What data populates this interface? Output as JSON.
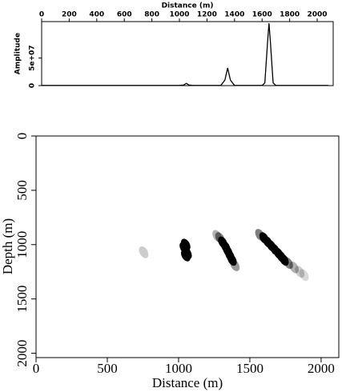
{
  "chart_data": [
    {
      "type": "line",
      "x_label": "Distance (m)",
      "y_label": "Amplitude",
      "xlim": [
        0,
        2116
      ],
      "xticks": [
        0,
        200,
        400,
        600,
        800,
        1000,
        1200,
        1400,
        1600,
        1800,
        2000
      ],
      "ylim": [
        0,
        116000000
      ],
      "yticks": [
        0,
        {
          "value": 50000000,
          "label": "5e+07"
        }
      ],
      "color": "#000000",
      "x": [
        0,
        1000,
        1030,
        1050,
        1070,
        1100,
        1300,
        1330,
        1350,
        1370,
        1400,
        1600,
        1620,
        1640,
        1650,
        1660,
        1680,
        1700,
        2080
      ],
      "values": [
        300000,
        300000,
        1000000,
        4000000,
        1000000,
        300000,
        300000,
        10000000,
        32000000,
        10000000,
        300000,
        300000,
        5000000,
        80000000,
        113000000,
        80000000,
        5000000,
        300000,
        300000
      ]
    },
    {
      "type": "image",
      "x_label": "Distance (m)",
      "y_label": "Depth (m)",
      "xlim": [
        0,
        2124
      ],
      "xticks": [
        0,
        500,
        1000,
        1500,
        2000
      ],
      "ylim": [
        0,
        2040
      ],
      "yticks": [
        0,
        500,
        1000,
        1500,
        2000
      ],
      "color": "#000000",
      "x": [
        1050,
        1050,
        1050,
        1040,
        1060,
        1310,
        1330,
        1345,
        1360,
        1375,
        1290,
        1395,
        1270,
        1600,
        1625,
        1650,
        1675,
        1700,
        1720,
        1740,
        1570,
        1770,
        1810,
        1850,
        1880,
        755
      ],
      "y": [
        1000,
        1050,
        1100,
        1030,
        1080,
        980,
        1020,
        1060,
        1100,
        1140,
        940,
        1190,
        920,
        940,
        975,
        1010,
        1045,
        1080,
        1110,
        1140,
        910,
        1170,
        1210,
        1250,
        1280,
        1070
      ],
      "intensity": [
        1,
        1,
        1,
        1,
        1,
        1,
        1,
        1,
        1,
        1,
        0.5,
        0.4,
        0.3,
        1,
        1,
        1,
        1,
        1,
        1,
        1,
        0.5,
        0.5,
        0.3,
        0.2,
        0.15,
        0.2
      ]
    }
  ]
}
